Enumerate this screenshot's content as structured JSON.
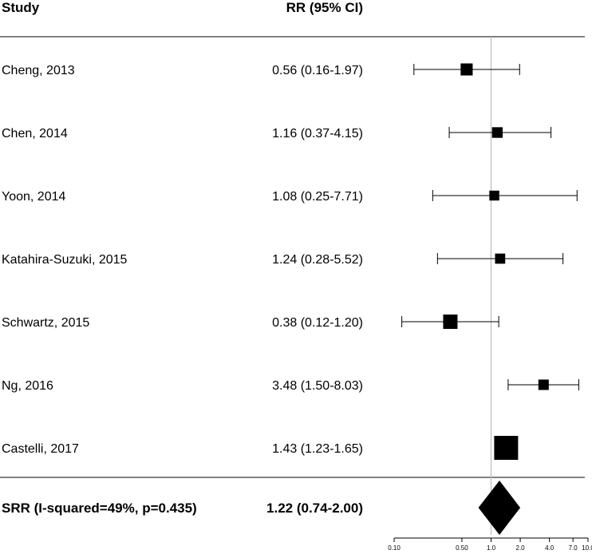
{
  "chart_data": {
    "type": "forest",
    "headers": {
      "study": "Study",
      "rr": "RR (95% CI)"
    },
    "scale": "log",
    "xlim": [
      0.1,
      10.0
    ],
    "ref_line": 1.0,
    "x_ticks": [
      0.1,
      0.5,
      1.0,
      2.0,
      4.0,
      7.0,
      10.0
    ],
    "x_tick_labels": [
      "0.10",
      "0.50",
      "1.0",
      "2.0",
      "4.0",
      "7.0",
      "10.0"
    ],
    "studies": [
      {
        "name": "Cheng, 2013",
        "rr": 0.56,
        "lo": 0.16,
        "hi": 1.97,
        "label": "0.56 (0.16-1.97)",
        "weight": 2.0
      },
      {
        "name": "Chen, 2014",
        "rr": 1.16,
        "lo": 0.37,
        "hi": 4.15,
        "label": "1.16 (0.37-4.15)",
        "weight": 1.3
      },
      {
        "name": "Yoon, 2014",
        "rr": 1.08,
        "lo": 0.25,
        "hi": 7.71,
        "label": "1.08 (0.25-7.71)",
        "weight": 1.0
      },
      {
        "name": "Katahira-Suzuki, 2015",
        "rr": 1.24,
        "lo": 0.28,
        "hi": 5.52,
        "label": "1.24 (0.28-5.52)",
        "weight": 1.1
      },
      {
        "name": "Schwartz, 2015",
        "rr": 0.38,
        "lo": 0.12,
        "hi": 1.2,
        "label": "0.38 (0.12-1.20)",
        "weight": 3.5
      },
      {
        "name": "Ng, 2016",
        "rr": 3.48,
        "lo": 1.5,
        "hi": 8.03,
        "label": "3.48 (1.50-8.03)",
        "weight": 1.2
      },
      {
        "name": "Castelli, 2017",
        "rr": 1.43,
        "lo": 1.23,
        "hi": 1.65,
        "label": "1.43 (1.23-1.65)",
        "weight": 14.0
      }
    ],
    "summary": {
      "name": "SRR (I-squared=49%, p=0.435)",
      "rr": 1.22,
      "lo": 0.74,
      "hi": 2.0,
      "label": "1.22 (0.74-2.00)"
    }
  }
}
